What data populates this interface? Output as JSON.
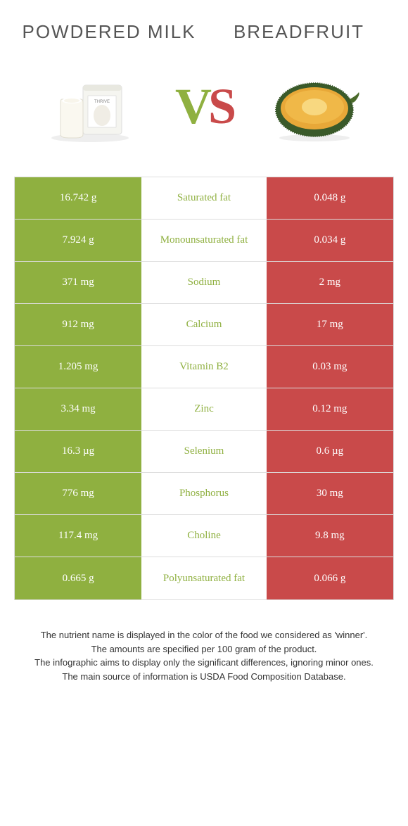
{
  "food1": {
    "title": "Powdered milk"
  },
  "food2": {
    "title": "Breadfruit"
  },
  "vs": {
    "v": "V",
    "s": "S"
  },
  "colors": {
    "green": "#8fb040",
    "red": "#c94a4a",
    "title_text": "#555555"
  },
  "rows": [
    {
      "left": "16.742 g",
      "label": "Saturated fat",
      "right": "0.048 g",
      "winner": "left"
    },
    {
      "left": "7.924 g",
      "label": "Monounsaturated fat",
      "right": "0.034 g",
      "winner": "left"
    },
    {
      "left": "371 mg",
      "label": "Sodium",
      "right": "2 mg",
      "winner": "left"
    },
    {
      "left": "912 mg",
      "label": "Calcium",
      "right": "17 mg",
      "winner": "left"
    },
    {
      "left": "1.205 mg",
      "label": "Vitamin B2",
      "right": "0.03 mg",
      "winner": "left"
    },
    {
      "left": "3.34 mg",
      "label": "Zinc",
      "right": "0.12 mg",
      "winner": "left"
    },
    {
      "left": "16.3 µg",
      "label": "Selenium",
      "right": "0.6 µg",
      "winner": "left"
    },
    {
      "left": "776 mg",
      "label": "Phosphorus",
      "right": "30 mg",
      "winner": "left"
    },
    {
      "left": "117.4 mg",
      "label": "Choline",
      "right": "9.8 mg",
      "winner": "left"
    },
    {
      "left": "0.665 g",
      "label": "Polyunsaturated fat",
      "right": "0.066 g",
      "winner": "left"
    }
  ],
  "footer": {
    "line1": "The nutrient name is displayed in the color of the food we considered as 'winner'.",
    "line2": "The amounts are specified per 100 gram of the product.",
    "line3": "The infographic aims to display only the significant differences, ignoring minor ones.",
    "line4": "The main source of information is USDA Food Composition Database."
  }
}
